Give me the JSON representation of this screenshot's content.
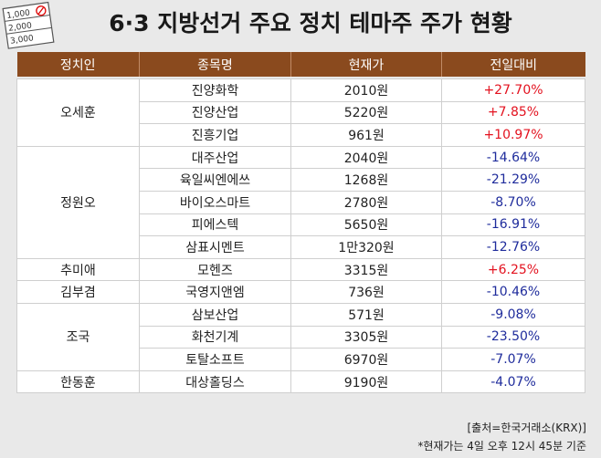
{
  "header": {
    "title": "6·3 지방선거 주요 정치 테마주 주가 현황"
  },
  "icon": {
    "labels": [
      "1,000",
      "2,000",
      "3,000"
    ]
  },
  "table": {
    "columns": [
      "정치인",
      "종목명",
      "현재가",
      "전일대비"
    ],
    "colors": {
      "header": "#8a4a1e",
      "up": "#e3121f",
      "down": "#1f2c9c"
    },
    "groups": [
      {
        "politician": "오세훈",
        "rows": [
          [
            "진양화학",
            "2010원",
            "+27.70%"
          ],
          [
            "진양산업",
            "5220원",
            "+7.85%"
          ],
          [
            "진흥기업",
            "961원",
            "+10.97%"
          ]
        ]
      },
      {
        "politician": "정원오",
        "rows": [
          [
            "대주산업",
            "2040원",
            "-14.64%"
          ],
          [
            "육일씨엔에쓰",
            "1268원",
            "-21.29%"
          ],
          [
            "바이오스마트",
            "2780원",
            "-8.70%"
          ],
          [
            "피에스텍",
            "5650원",
            "-16.91%"
          ],
          [
            "삼표시멘트",
            "1만320원",
            "-12.76%"
          ]
        ]
      },
      {
        "politician": "추미애",
        "rows": [
          [
            "모헨즈",
            "3315원",
            "+6.25%"
          ]
        ]
      },
      {
        "politician": "김부겸",
        "rows": [
          [
            "국영지앤엠",
            "736원",
            "-10.46%"
          ]
        ]
      },
      {
        "politician": "조국",
        "rows": [
          [
            "삼보산업",
            "571원",
            "-9.08%"
          ],
          [
            "화천기계",
            "3305원",
            "-23.50%"
          ],
          [
            "토탈소프트",
            "6970원",
            "-7.07%"
          ]
        ]
      },
      {
        "politician": "한동훈",
        "rows": [
          [
            "대상홀딩스",
            "9190원",
            "-4.07%"
          ]
        ]
      }
    ]
  },
  "footer": {
    "source": "[출처=한국거래소(KRX)]",
    "note": "*현재가는 4일 오후 12시 45분 기준"
  }
}
